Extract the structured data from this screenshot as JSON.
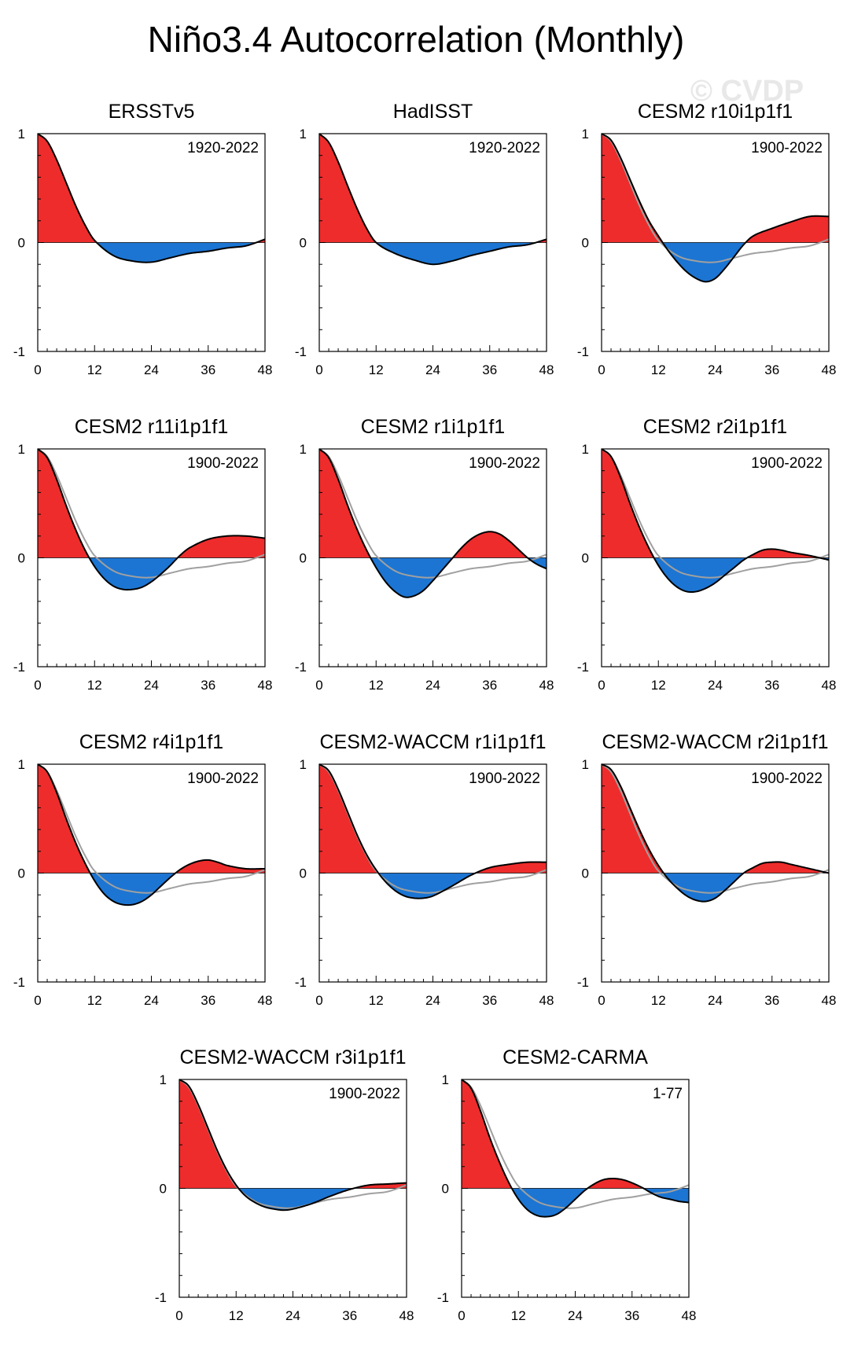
{
  "page": {
    "title": "Niño3.4 Autocorrelation (Monthly)",
    "watermark": "© CVDP"
  },
  "colors": {
    "positive": "#ee2c2c",
    "negative": "#1c75d2",
    "line": "#000000",
    "obs_reference": "#a0a0a0"
  },
  "chart_data": [
    {
      "type": "area",
      "title": "ERSSTv5",
      "period": "1920-2022",
      "x_lag": [
        0,
        2,
        4,
        6,
        8,
        10,
        12,
        16,
        20,
        24,
        28,
        32,
        36,
        40,
        44,
        48
      ],
      "y_acf": [
        1.0,
        0.93,
        0.76,
        0.55,
        0.34,
        0.16,
        0.02,
        -0.12,
        -0.17,
        -0.18,
        -0.14,
        -0.1,
        -0.08,
        -0.05,
        -0.03,
        0.03
      ],
      "xticks": [
        0,
        12,
        24,
        36,
        48
      ],
      "yticks": [
        -1,
        0,
        1
      ],
      "xlim": [
        0,
        48
      ],
      "ylim": [
        -1,
        1
      ]
    },
    {
      "type": "area",
      "title": "HadISST",
      "period": "1920-2022",
      "x_lag": [
        0,
        2,
        4,
        6,
        8,
        10,
        12,
        16,
        20,
        24,
        28,
        32,
        36,
        40,
        44,
        48
      ],
      "y_acf": [
        1.0,
        0.92,
        0.74,
        0.52,
        0.31,
        0.13,
        0.0,
        -0.1,
        -0.16,
        -0.2,
        -0.17,
        -0.12,
        -0.08,
        -0.04,
        -0.02,
        0.03
      ],
      "xticks": [
        0,
        12,
        24,
        36,
        48
      ],
      "yticks": [
        -1,
        0,
        1
      ],
      "xlim": [
        0,
        48
      ],
      "ylim": [
        -1,
        1
      ]
    },
    {
      "type": "area",
      "title": "CESM2 r10i1p1f1",
      "period": "1900-2022",
      "x_lag": [
        0,
        2,
        4,
        6,
        8,
        10,
        12,
        14,
        16,
        18,
        20,
        22,
        24,
        26,
        28,
        30,
        32,
        36,
        40,
        44,
        48
      ],
      "y_acf": [
        1.0,
        0.94,
        0.78,
        0.58,
        0.38,
        0.2,
        0.06,
        -0.07,
        -0.18,
        -0.27,
        -0.33,
        -0.36,
        -0.33,
        -0.24,
        -0.13,
        -0.02,
        0.06,
        0.13,
        0.19,
        0.24,
        0.24
      ],
      "xticks": [
        0,
        12,
        24,
        36,
        48
      ],
      "yticks": [
        -1,
        0,
        1
      ],
      "xlim": [
        0,
        48
      ],
      "ylim": [
        -1,
        1
      ]
    },
    {
      "type": "area",
      "title": "CESM2 r11i1p1f1",
      "period": "1900-2022",
      "x_lag": [
        0,
        2,
        4,
        6,
        8,
        10,
        12,
        14,
        16,
        18,
        20,
        22,
        24,
        26,
        28,
        30,
        32,
        36,
        40,
        44,
        48
      ],
      "y_acf": [
        1.0,
        0.92,
        0.72,
        0.48,
        0.26,
        0.07,
        -0.08,
        -0.19,
        -0.26,
        -0.29,
        -0.29,
        -0.27,
        -0.22,
        -0.15,
        -0.07,
        0.02,
        0.09,
        0.17,
        0.2,
        0.2,
        0.18
      ],
      "xticks": [
        0,
        12,
        24,
        36,
        48
      ],
      "yticks": [
        -1,
        0,
        1
      ],
      "xlim": [
        0,
        48
      ],
      "ylim": [
        -1,
        1
      ]
    },
    {
      "type": "area",
      "title": "CESM2 r1i1p1f1",
      "period": "1900-2022",
      "x_lag": [
        0,
        2,
        4,
        6,
        8,
        10,
        12,
        14,
        16,
        18,
        20,
        22,
        24,
        26,
        28,
        30,
        32,
        34,
        36,
        38,
        40,
        42,
        44,
        46,
        48
      ],
      "y_acf": [
        1.0,
        0.92,
        0.72,
        0.48,
        0.26,
        0.07,
        -0.09,
        -0.22,
        -0.31,
        -0.36,
        -0.35,
        -0.3,
        -0.21,
        -0.11,
        -0.01,
        0.09,
        0.17,
        0.22,
        0.24,
        0.22,
        0.16,
        0.08,
        0.0,
        -0.06,
        -0.1
      ],
      "xticks": [
        0,
        12,
        24,
        36,
        48
      ],
      "yticks": [
        -1,
        0,
        1
      ],
      "xlim": [
        0,
        48
      ],
      "ylim": [
        -1,
        1
      ]
    },
    {
      "type": "area",
      "title": "CESM2 r2i1p1f1",
      "period": "1900-2022",
      "x_lag": [
        0,
        2,
        4,
        6,
        8,
        10,
        12,
        14,
        16,
        18,
        20,
        22,
        24,
        26,
        28,
        30,
        32,
        34,
        36,
        38,
        40,
        44,
        48
      ],
      "y_acf": [
        1.0,
        0.93,
        0.74,
        0.5,
        0.28,
        0.09,
        -0.07,
        -0.19,
        -0.27,
        -0.31,
        -0.31,
        -0.28,
        -0.23,
        -0.16,
        -0.09,
        -0.02,
        0.03,
        0.07,
        0.08,
        0.07,
        0.05,
        0.02,
        -0.02
      ],
      "xticks": [
        0,
        12,
        24,
        36,
        48
      ],
      "yticks": [
        -1,
        0,
        1
      ],
      "xlim": [
        0,
        48
      ],
      "ylim": [
        -1,
        1
      ]
    },
    {
      "type": "area",
      "title": "CESM2 r4i1p1f1",
      "period": "1900-2022",
      "x_lag": [
        0,
        2,
        4,
        6,
        8,
        10,
        12,
        14,
        16,
        18,
        20,
        22,
        24,
        26,
        28,
        30,
        32,
        34,
        36,
        38,
        40,
        44,
        48
      ],
      "y_acf": [
        1.0,
        0.93,
        0.74,
        0.5,
        0.28,
        0.09,
        -0.07,
        -0.19,
        -0.26,
        -0.29,
        -0.29,
        -0.26,
        -0.2,
        -0.12,
        -0.04,
        0.03,
        0.08,
        0.11,
        0.12,
        0.1,
        0.07,
        0.04,
        0.04
      ],
      "xticks": [
        0,
        12,
        24,
        36,
        48
      ],
      "yticks": [
        -1,
        0,
        1
      ],
      "xlim": [
        0,
        48
      ],
      "ylim": [
        -1,
        1
      ]
    },
    {
      "type": "area",
      "title": "CESM2-WACCM r1i1p1f1",
      "period": "1900-2022",
      "x_lag": [
        0,
        2,
        4,
        6,
        8,
        10,
        12,
        14,
        16,
        18,
        20,
        22,
        24,
        28,
        32,
        36,
        40,
        44,
        48
      ],
      "y_acf": [
        1.0,
        0.94,
        0.77,
        0.56,
        0.35,
        0.17,
        0.03,
        -0.08,
        -0.16,
        -0.21,
        -0.23,
        -0.23,
        -0.21,
        -0.12,
        -0.02,
        0.05,
        0.08,
        0.1,
        0.1
      ],
      "xticks": [
        0,
        12,
        24,
        36,
        48
      ],
      "yticks": [
        -1,
        0,
        1
      ],
      "xlim": [
        0,
        48
      ],
      "ylim": [
        -1,
        1
      ]
    },
    {
      "type": "area",
      "title": "CESM2-WACCM r2i1p1f1",
      "period": "1900-2022",
      "x_lag": [
        0,
        2,
        4,
        6,
        8,
        10,
        12,
        14,
        16,
        18,
        20,
        22,
        24,
        26,
        28,
        30,
        32,
        34,
        36,
        38,
        40,
        42,
        44,
        46,
        48
      ],
      "y_acf": [
        1.0,
        0.95,
        0.8,
        0.6,
        0.4,
        0.22,
        0.07,
        -0.05,
        -0.14,
        -0.21,
        -0.25,
        -0.26,
        -0.23,
        -0.16,
        -0.08,
        0.0,
        0.05,
        0.09,
        0.1,
        0.1,
        0.08,
        0.06,
        0.04,
        0.02,
        0.0
      ],
      "xticks": [
        0,
        12,
        24,
        36,
        48
      ],
      "yticks": [
        -1,
        0,
        1
      ],
      "xlim": [
        0,
        48
      ],
      "ylim": [
        -1,
        1
      ]
    },
    {
      "type": "area",
      "title": "CESM2-WACCM r3i1p1f1",
      "period": "1900-2022",
      "x_lag": [
        0,
        2,
        4,
        6,
        8,
        10,
        12,
        14,
        16,
        18,
        20,
        22,
        24,
        28,
        32,
        36,
        40,
        44,
        48
      ],
      "y_acf": [
        1.0,
        0.94,
        0.77,
        0.56,
        0.35,
        0.17,
        0.03,
        -0.07,
        -0.13,
        -0.17,
        -0.19,
        -0.2,
        -0.19,
        -0.14,
        -0.07,
        -0.01,
        0.03,
        0.04,
        0.05
      ],
      "xticks": [
        0,
        12,
        24,
        36,
        48
      ],
      "yticks": [
        -1,
        0,
        1
      ],
      "xlim": [
        0,
        48
      ],
      "ylim": [
        -1,
        1
      ]
    },
    {
      "type": "area",
      "title": "CESM2-CARMA",
      "period": "1-77",
      "x_lag": [
        0,
        2,
        4,
        6,
        8,
        10,
        12,
        14,
        16,
        18,
        20,
        22,
        24,
        26,
        28,
        30,
        32,
        34,
        36,
        38,
        40,
        42,
        44,
        46,
        48
      ],
      "y_acf": [
        1.0,
        0.92,
        0.71,
        0.46,
        0.24,
        0.05,
        -0.1,
        -0.2,
        -0.25,
        -0.26,
        -0.24,
        -0.18,
        -0.1,
        -0.02,
        0.04,
        0.08,
        0.09,
        0.08,
        0.05,
        0.01,
        -0.04,
        -0.08,
        -0.1,
        -0.12,
        -0.13
      ],
      "xticks": [
        0,
        12,
        24,
        36,
        48
      ],
      "yticks": [
        -1,
        0,
        1
      ],
      "xlim": [
        0,
        48
      ],
      "ylim": [
        -1,
        1
      ]
    }
  ]
}
